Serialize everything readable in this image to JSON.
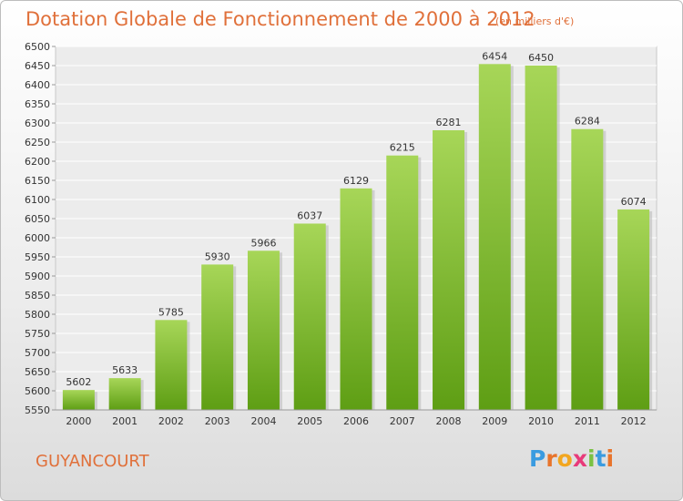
{
  "header": {
    "title": "Dotation Globale de Fonctionnement de 2000 à 2012",
    "unit": "(en milliers d'€)"
  },
  "footer": {
    "commune": "GUYANCOURT",
    "logo": [
      "P",
      "r",
      "o",
      "x",
      "i",
      "t",
      "i"
    ],
    "logo_colors": [
      "#3a9be0",
      "#e8742b",
      "#f2a61f",
      "#e83a7a",
      "#7ac143",
      "#3a9be0",
      "#e8742b"
    ]
  },
  "colors": {
    "bar_light": "#a7d658",
    "bar_dark": "#5e9e14",
    "accent": "#e0703a"
  },
  "chart_data": {
    "type": "bar",
    "categories": [
      "2000",
      "2001",
      "2002",
      "2003",
      "2004",
      "2005",
      "2006",
      "2007",
      "2008",
      "2009",
      "2010",
      "2011",
      "2012"
    ],
    "values": [
      5602,
      5633,
      5785,
      5930,
      5966,
      6037,
      6129,
      6215,
      6281,
      6454,
      6450,
      6284,
      6074
    ],
    "title": "Dotation Globale de Fonctionnement de 2000 à 2012",
    "subtitle": "(en milliers d'€)",
    "ylim": [
      5550,
      6500
    ],
    "yticks": [
      5550,
      5600,
      5650,
      5700,
      5750,
      5800,
      5850,
      5900,
      5950,
      6000,
      6050,
      6100,
      6150,
      6200,
      6250,
      6300,
      6350,
      6400,
      6450,
      6500
    ],
    "grid": true,
    "legend": "none"
  }
}
